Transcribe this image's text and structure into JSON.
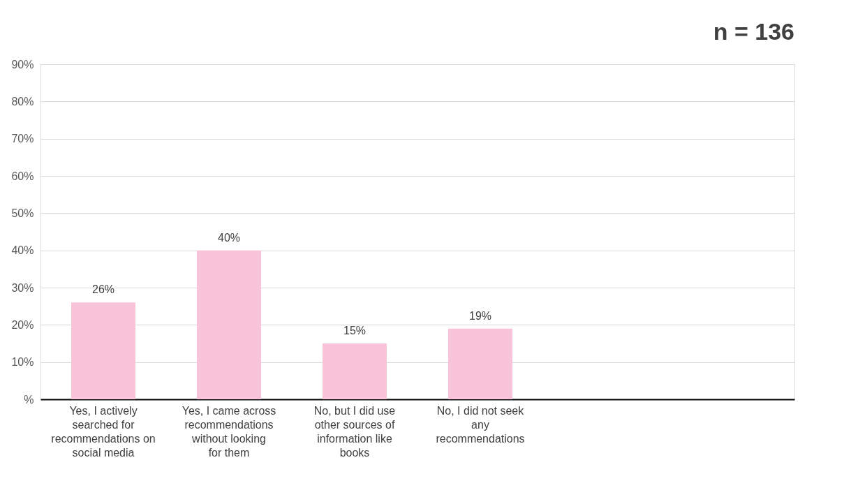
{
  "chart_data": {
    "type": "bar",
    "title": "n = 136",
    "categories": [
      "Yes, I actively searched for recommendations on social media",
      "Yes, I came across recommendations without looking for them",
      "No, but I did use other sources of information like books",
      "No, I did not seek any recommendations",
      null,
      null
    ],
    "values": [
      26,
      40,
      15,
      19,
      null,
      null
    ],
    "value_labels": [
      "26%",
      "40%",
      "15%",
      "19%",
      null,
      null
    ],
    "color": "#f9c3da",
    "ylim": [
      0,
      90
    ],
    "yticks": [
      {
        "value": 0,
        "label": "%"
      },
      {
        "value": 10,
        "label": "10%"
      },
      {
        "value": 20,
        "label": "20%"
      },
      {
        "value": 30,
        "label": "30%"
      },
      {
        "value": 40,
        "label": "40%"
      },
      {
        "value": 50,
        "label": "50%"
      },
      {
        "value": 60,
        "label": "60%"
      },
      {
        "value": 70,
        "label": "70%"
      },
      {
        "value": 80,
        "label": "80%"
      },
      {
        "value": 90,
        "label": "90%"
      }
    ],
    "grid": "y"
  }
}
